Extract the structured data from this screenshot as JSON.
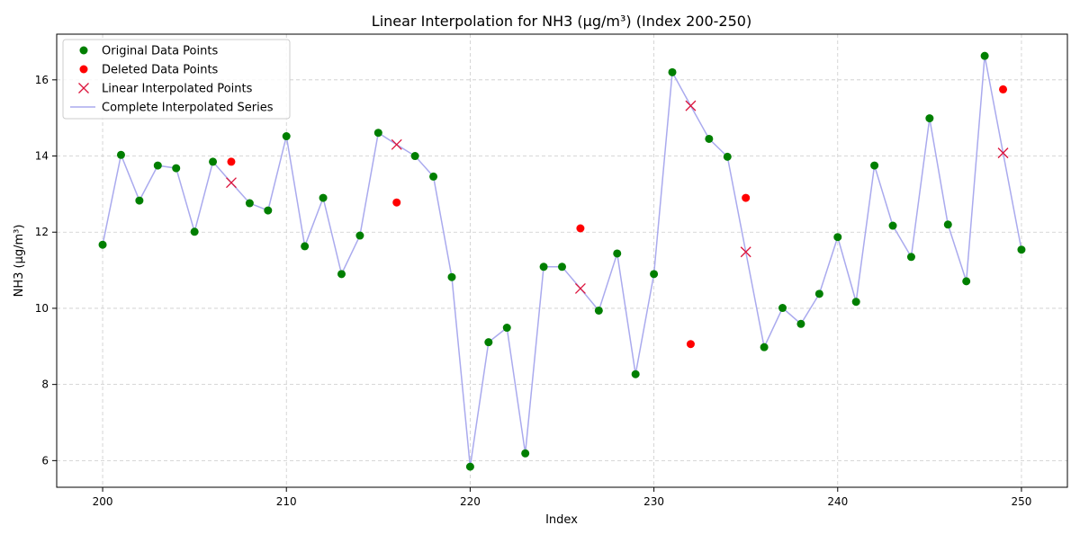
{
  "chart_data": {
    "type": "line",
    "title": "Linear Interpolation for NH3 (µg/m³) (Index 200-250)",
    "xlabel": "Index",
    "ylabel": "NH3 (µg/m³)",
    "xlim": [
      197.5,
      252.5
    ],
    "ylim": [
      5.3,
      17.2
    ],
    "x_ticks": [
      200,
      210,
      220,
      230,
      240,
      250
    ],
    "y_ticks": [
      6,
      8,
      10,
      12,
      14,
      16
    ],
    "grid": true,
    "legend_position": "top-left",
    "colors": {
      "original": "#007f00",
      "deleted": "#ff0000",
      "interpolated": "#dc143c",
      "series": "#aaaaee"
    },
    "series": [
      {
        "name": "Original Data Points",
        "style": "marker-circle",
        "x": [
          200,
          201,
          202,
          203,
          204,
          205,
          206,
          208,
          209,
          210,
          211,
          212,
          213,
          214,
          215,
          217,
          218,
          219,
          220,
          221,
          222,
          223,
          224,
          225,
          227,
          228,
          229,
          230,
          231,
          233,
          234,
          236,
          237,
          238,
          239,
          240,
          241,
          242,
          243,
          244,
          245,
          246,
          247,
          248,
          250
        ],
        "y": [
          11.67,
          14.03,
          12.83,
          13.75,
          13.68,
          12.01,
          13.85,
          12.76,
          12.57,
          14.52,
          11.63,
          12.9,
          10.9,
          11.91,
          14.61,
          14.0,
          13.46,
          10.82,
          5.84,
          9.11,
          9.49,
          6.19,
          11.09,
          11.09,
          9.94,
          11.44,
          8.27,
          10.9,
          16.2,
          14.45,
          13.98,
          8.98,
          10.01,
          9.59,
          10.38,
          11.87,
          10.17,
          13.75,
          12.17,
          11.35,
          14.99,
          12.2,
          10.71,
          16.63,
          11.54
        ]
      },
      {
        "name": "Deleted Data Points",
        "style": "marker-circle",
        "x": [
          207,
          216,
          226,
          232,
          235,
          249
        ],
        "y": [
          13.85,
          12.78,
          12.1,
          9.06,
          12.9,
          15.75
        ]
      },
      {
        "name": "Linear Interpolated Points",
        "style": "marker-x",
        "x": [
          207,
          216,
          226,
          232,
          235,
          249
        ],
        "y": [
          13.3,
          14.3,
          10.52,
          15.32,
          11.48,
          14.08
        ]
      },
      {
        "name": "Complete Interpolated Series",
        "style": "line",
        "x": [
          200,
          201,
          202,
          203,
          204,
          205,
          206,
          207,
          208,
          209,
          210,
          211,
          212,
          213,
          214,
          215,
          216,
          217,
          218,
          219,
          220,
          221,
          222,
          223,
          224,
          225,
          226,
          227,
          228,
          229,
          230,
          231,
          232,
          233,
          234,
          235,
          236,
          237,
          238,
          239,
          240,
          241,
          242,
          243,
          244,
          245,
          246,
          247,
          248,
          249,
          250
        ],
        "y": [
          11.67,
          14.03,
          12.83,
          13.75,
          13.68,
          12.01,
          13.85,
          13.3,
          12.76,
          12.57,
          14.52,
          11.63,
          12.9,
          10.9,
          11.91,
          14.61,
          14.3,
          14.0,
          13.46,
          10.82,
          5.84,
          9.11,
          9.49,
          6.19,
          11.09,
          11.09,
          10.52,
          9.94,
          11.44,
          8.27,
          10.9,
          16.2,
          15.32,
          14.45,
          13.98,
          11.48,
          8.98,
          10.01,
          9.59,
          10.38,
          11.87,
          10.17,
          13.75,
          12.17,
          11.35,
          14.99,
          12.2,
          10.71,
          16.63,
          14.08,
          11.54
        ]
      }
    ]
  }
}
